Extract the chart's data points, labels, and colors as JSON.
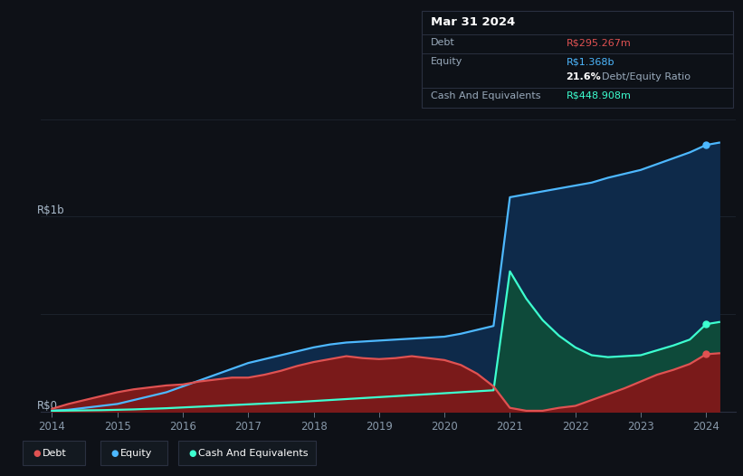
{
  "bg_color": "#0e1117",
  "plot_bg_color": "#0e1117",
  "grid_color": "#1e2530",
  "years": [
    2014.0,
    2014.25,
    2014.5,
    2014.75,
    2015.0,
    2015.25,
    2015.5,
    2015.75,
    2016.0,
    2016.25,
    2016.5,
    2016.75,
    2017.0,
    2017.25,
    2017.5,
    2017.75,
    2018.0,
    2018.25,
    2018.5,
    2018.75,
    2019.0,
    2019.25,
    2019.5,
    2019.75,
    2020.0,
    2020.25,
    2020.5,
    2020.75,
    2021.0,
    2021.25,
    2021.5,
    2021.75,
    2022.0,
    2022.25,
    2022.5,
    2022.75,
    2023.0,
    2023.25,
    2023.5,
    2023.75,
    2024.0,
    2024.2
  ],
  "debt": [
    0.015,
    0.04,
    0.06,
    0.08,
    0.1,
    0.115,
    0.125,
    0.135,
    0.14,
    0.155,
    0.165,
    0.175,
    0.175,
    0.19,
    0.21,
    0.235,
    0.255,
    0.27,
    0.285,
    0.275,
    0.27,
    0.275,
    0.285,
    0.275,
    0.265,
    0.24,
    0.195,
    0.13,
    0.02,
    0.005,
    0.005,
    0.02,
    0.03,
    0.06,
    0.09,
    0.12,
    0.155,
    0.19,
    0.215,
    0.245,
    0.295,
    0.3
  ],
  "equity": [
    0.005,
    0.01,
    0.02,
    0.03,
    0.04,
    0.06,
    0.08,
    0.1,
    0.13,
    0.16,
    0.19,
    0.22,
    0.25,
    0.27,
    0.29,
    0.31,
    0.33,
    0.345,
    0.355,
    0.36,
    0.365,
    0.37,
    0.375,
    0.38,
    0.385,
    0.4,
    0.42,
    0.44,
    1.1,
    1.115,
    1.13,
    1.145,
    1.16,
    1.175,
    1.2,
    1.22,
    1.24,
    1.27,
    1.3,
    1.33,
    1.368,
    1.38
  ],
  "cash": [
    0.005,
    0.006,
    0.007,
    0.008,
    0.01,
    0.012,
    0.015,
    0.018,
    0.022,
    0.026,
    0.03,
    0.034,
    0.038,
    0.042,
    0.046,
    0.05,
    0.055,
    0.06,
    0.065,
    0.07,
    0.075,
    0.08,
    0.085,
    0.09,
    0.095,
    0.1,
    0.105,
    0.11,
    0.72,
    0.58,
    0.47,
    0.39,
    0.33,
    0.29,
    0.28,
    0.285,
    0.29,
    0.315,
    0.34,
    0.37,
    0.449,
    0.46
  ],
  "debt_color": "#e05252",
  "equity_color": "#4db8ff",
  "cash_color": "#3dffd0",
  "debt_fill": "#7a1a1a",
  "equity_fill": "#0e2a4a",
  "cash_fill": "#0e4a3a",
  "ylabel_text": "R$1b",
  "y0_text": "R$0",
  "ylim": [
    0,
    1.55
  ],
  "xlim": [
    2013.83,
    2024.45
  ],
  "xticks": [
    2014,
    2015,
    2016,
    2017,
    2018,
    2019,
    2020,
    2021,
    2022,
    2023,
    2024
  ],
  "tooltip_box_color": "#0d1117",
  "tooltip_border_color": "#2a3040",
  "legend_labels": [
    "Debt",
    "Equity",
    "Cash And Equivalents"
  ],
  "legend_colors": [
    "#e05252",
    "#4db8ff",
    "#3dffd0"
  ],
  "tooltip_title": "Mar 31 2024",
  "tooltip_rows": [
    {
      "label": "Debt",
      "value": "R$295.267m",
      "value_color": "#e05252"
    },
    {
      "label": "Equity",
      "value": "R$1.368b",
      "value_color": "#4db8ff"
    },
    {
      "label": "",
      "value": "21.6%",
      "suffix": " Debt/Equity Ratio",
      "value_color": "#ffffff"
    },
    {
      "label": "Cash And Equivalents",
      "value": "R$448.908m",
      "value_color": "#3dffd0"
    }
  ]
}
